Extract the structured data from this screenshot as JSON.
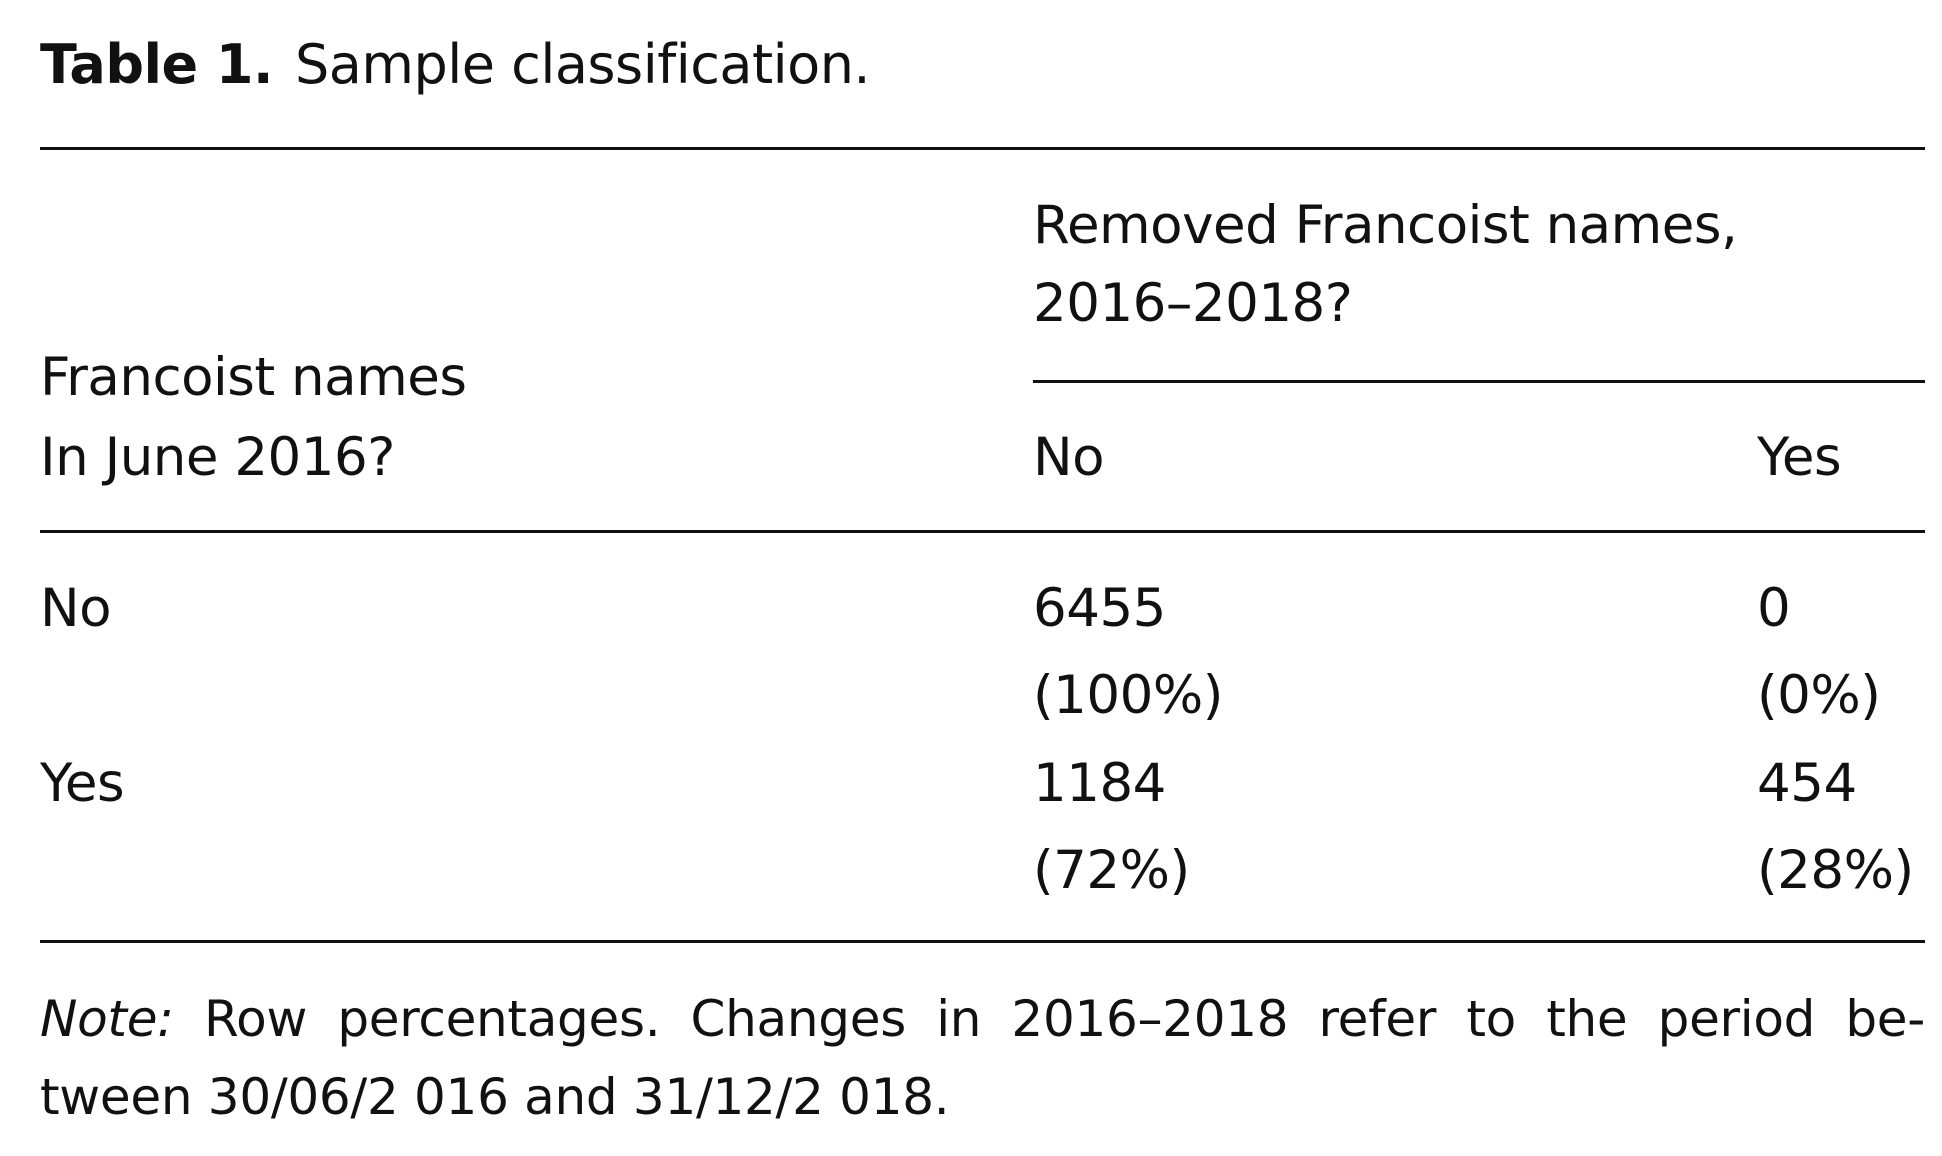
{
  "caption": {
    "label": "Table 1.",
    "title": "Sample classification."
  },
  "table": {
    "row_header": [
      "Francoist names",
      "In June 2016?"
    ],
    "column_group_header": [
      "Removed Francoist names,",
      "2016–2018?"
    ],
    "columns": [
      "No",
      "Yes"
    ],
    "rows": [
      {
        "label": "No",
        "cells": [
          {
            "count": "6455",
            "percent": "(100%)"
          },
          {
            "count": "0",
            "percent": "(0%)"
          }
        ]
      },
      {
        "label": "Yes",
        "cells": [
          {
            "count": "1184",
            "percent": "(72%)"
          },
          {
            "count": "454",
            "percent": "(28%)"
          }
        ]
      }
    ]
  },
  "note": {
    "label": "Note:",
    "text": "Row percentages. Changes in 2016–2018 refer to the period be-tween 30/06/2 016 and 31/12/2 018."
  }
}
